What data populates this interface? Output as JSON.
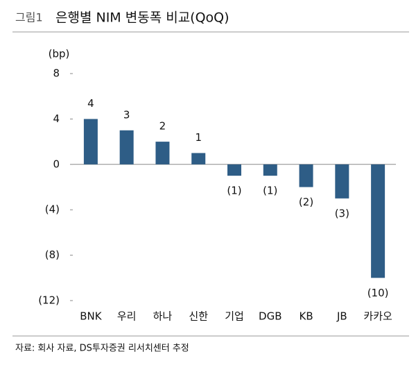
{
  "chart_data": {
    "type": "bar",
    "figure_label": "그림1",
    "title": "은행별 NIM 변동폭 비교(QoQ)",
    "ylabel": "(bp)",
    "categories": [
      "BNK",
      "우리",
      "하나",
      "신한",
      "기업",
      "DGB",
      "KB",
      "JB",
      "카카오"
    ],
    "values": [
      4,
      3,
      2,
      1,
      -1,
      -1,
      -2,
      -3,
      -10
    ],
    "value_labels": [
      "4",
      "3",
      "2",
      "1",
      "(1)",
      "(1)",
      "(2)",
      "(3)",
      "(10)"
    ],
    "color": "#2e5d86",
    "ylim": [
      -12,
      8
    ],
    "yticks": [
      8,
      4,
      0,
      {
        "value": -4,
        "label": "(4)"
      },
      {
        "value": -8,
        "label": "(8)"
      },
      {
        "value": -12,
        "label": "(12)"
      }
    ],
    "source": "자료: 회사 자료, DS투자증권 리서치센터 추정"
  }
}
